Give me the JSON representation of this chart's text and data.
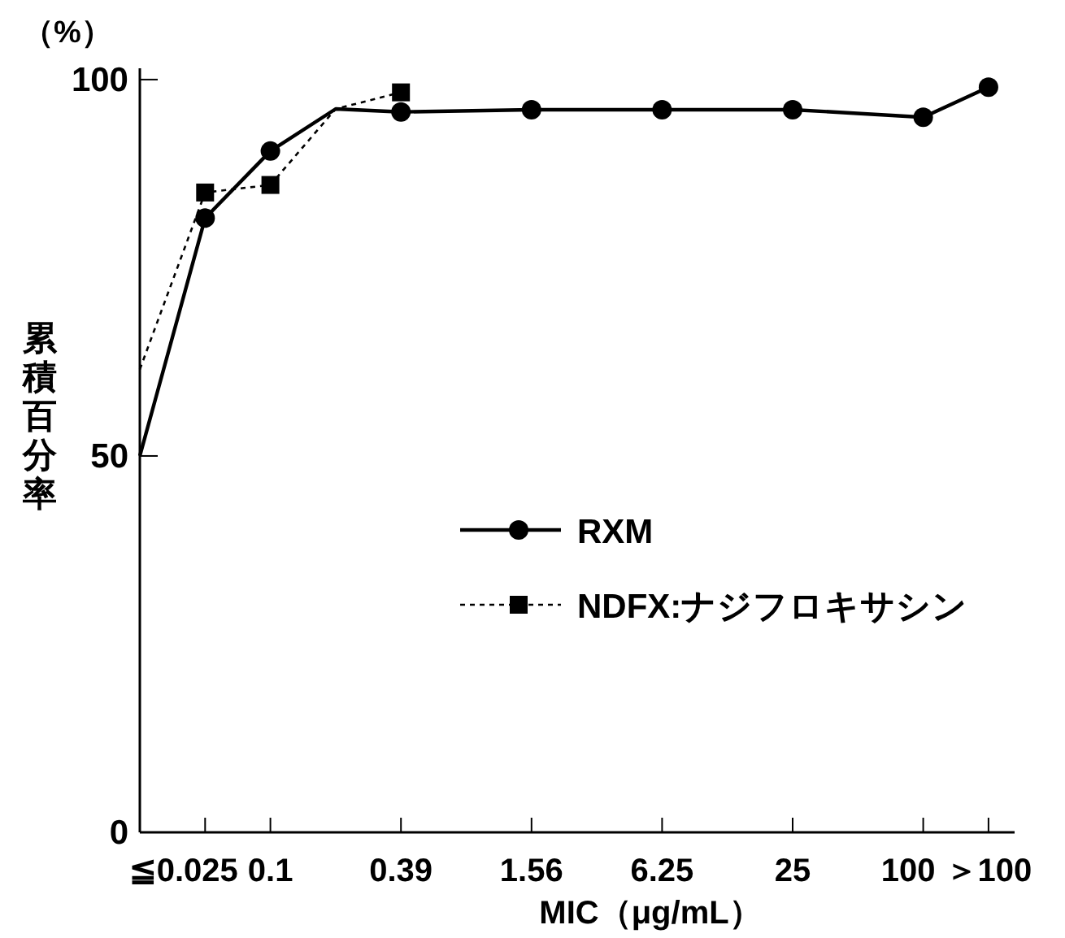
{
  "chart_data": {
    "type": "line",
    "ylabel": "累積百分率",
    "xlabel": "MIC（μg/mL）",
    "annotations": [
      "（%）"
    ],
    "categories": [
      null,
      "≦0.025",
      "0.1",
      null,
      "0.39",
      null,
      "1.56",
      null,
      "6.25",
      null,
      "25",
      null,
      "100",
      "＞100"
    ],
    "ylim": [
      0,
      101.5
    ],
    "yticks": [
      0,
      50,
      100
    ],
    "legend": "right",
    "series": [
      {
        "name": "RXM",
        "color": "#000000",
        "marker": "circle",
        "line_style": "solid",
        "values": [
          50,
          81.6,
          90.5,
          96.1,
          95.7,
          null,
          96,
          null,
          96,
          null,
          96,
          null,
          95,
          99
        ]
      },
      {
        "name": "NDFX:ナジフロキサシン",
        "color": "#000000",
        "marker": "square",
        "line_style": "dotted",
        "values": [
          61.5,
          85,
          86,
          96.1,
          98.3,
          null,
          null,
          null,
          null,
          null,
          null,
          null,
          null,
          null
        ]
      }
    ]
  }
}
